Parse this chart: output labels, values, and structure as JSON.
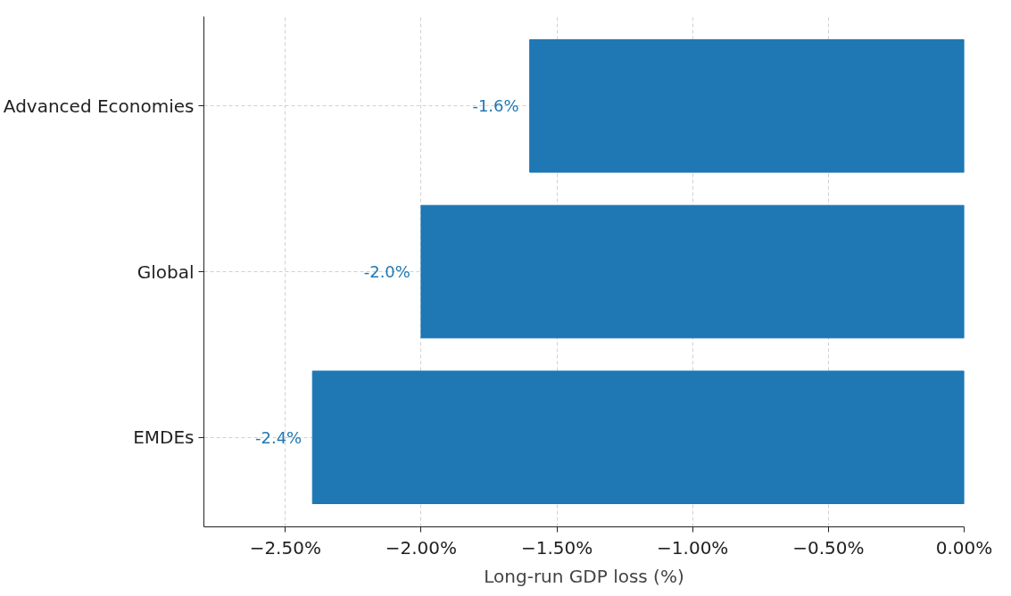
{
  "chart_data": {
    "type": "bar",
    "orientation": "horizontal",
    "xlabel": "Long-run GDP loss (%)",
    "categories": [
      "Advanced Economies",
      "Global",
      "EMDEs"
    ],
    "series": [
      {
        "color": "#1f77b4",
        "values": [
          -1.6,
          -2.0,
          -2.4
        ],
        "value_labels": [
          "-1.6%",
          "-2.0%",
          "-2.4%"
        ]
      }
    ],
    "xlim": [
      -2.8,
      0.0
    ],
    "xticks": [
      {
        "value": -2.5,
        "label": "−2.50%"
      },
      {
        "value": -2.0,
        "label": "−2.00%"
      },
      {
        "value": -1.5,
        "label": "−1.50%"
      },
      {
        "value": -1.0,
        "label": "−1.00%"
      },
      {
        "value": -0.5,
        "label": "−0.50%"
      },
      {
        "value": 0.0,
        "label": "0.00%"
      }
    ],
    "grid": true
  }
}
